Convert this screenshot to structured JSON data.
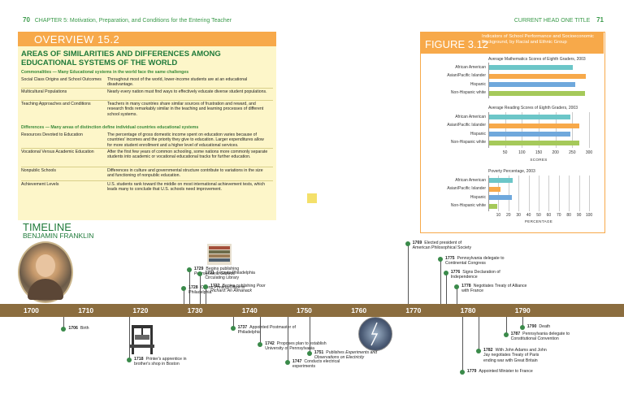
{
  "header": {
    "left_page_num": "70",
    "left_title": "CHAPTER 5: Motivation, Preparation, and Conditions for the Entering Teacher",
    "right_title": "CURRENT HEAD ONE TITLE",
    "right_page_num": "71"
  },
  "overview": {
    "label": "OVERVIEW 15.2",
    "heading": "AREAS OF SIMILARITIES AND DIFFERENCES AMONG EDUCATIONAL SYSTEMS OF THE WORLD",
    "sections": [
      {
        "subhead": "Commonalities — Many Educational systems in the world face the same challenges",
        "rows": [
          {
            "topic": "Social Class Origins and School Outcomes",
            "desc": "Throughout most of the world, lower-income students are at an educational disadvantage."
          },
          {
            "topic": "Multicultural Populations",
            "desc": "Nearly every nation must find ways to effectively educate diverse student populations."
          },
          {
            "topic": "Teaching Approaches and Conditions",
            "desc": "Teachers in many countries share similar sources of frustration and reward, and research finds remarkably similar in the teaching and learning processes of different school systems."
          }
        ]
      },
      {
        "subhead": "Differences — Many areas of distinction define individual countries educational systems",
        "rows": [
          {
            "topic": "Resources Devoted to Education",
            "desc": "The percentage of gross domestic income spent on education varies because of countries' incomes and the priority they give to education. Larger expenditures allow for more student enrollment and a higher level of educational services."
          },
          {
            "topic": "Vocational Versus Academic Education",
            "desc": "After the first few years of common schooling, some nations more commonly separate students into academic or vocational educational tracks for further education."
          },
          {
            "topic": "Nonpublic Schools",
            "desc": "Differences in culture and governmental structure contribute to variations in the size and functioning of nonpublic education."
          },
          {
            "topic": "Achievement Levels",
            "desc": "U.S. students rank toward the middle on most international achievement tests, which leads many to conclude that U.S. schools need improvement."
          }
        ]
      }
    ]
  },
  "figure": {
    "label": "FIGURE 3.12",
    "caption": "Indicators of School Performance and Socioeconomic Background, by Racial and Ethnic Group"
  },
  "chart_data": [
    {
      "type": "bar",
      "title": "Average Mathematics Scores of Eighth Graders, 2003",
      "categories": [
        "African American",
        "Asian/Pacific Islander",
        "Hispanic",
        "Non-Hispanic white"
      ],
      "values": [
        252,
        291,
        259,
        288
      ],
      "colors": [
        "#6cc6c8",
        "#f7a94a",
        "#6fa8dc",
        "#a5c95a"
      ],
      "xlim": [
        0,
        300
      ]
    },
    {
      "type": "bar",
      "title": "Average Reading Scores of Eighth Graders, 2003",
      "categories": [
        "African American",
        "Asian/Pacific Islander",
        "Hispanic",
        "Non-Hispanic white"
      ],
      "values": [
        244,
        270,
        245,
        272
      ],
      "colors": [
        "#6cc6c8",
        "#f7a94a",
        "#6fa8dc",
        "#a5c95a"
      ],
      "xlim": [
        0,
        300
      ],
      "ticks": [
        "50",
        "100",
        "150",
        "200",
        "250",
        "300"
      ],
      "xlabel": "SCORES"
    },
    {
      "type": "bar",
      "title": "Poverty Percentage, 2003",
      "categories": [
        "African American",
        "Asian/Pacific Islander",
        "Hispanic",
        "Non-Hispanic white"
      ],
      "values": [
        24,
        12,
        23,
        9
      ],
      "colors": [
        "#6cc6c8",
        "#f7a94a",
        "#6fa8dc",
        "#a5c95a"
      ],
      "xlim": [
        0,
        100
      ],
      "ticks": [
        "10",
        "20",
        "30",
        "40",
        "50",
        "60",
        "70",
        "80",
        "90",
        "100"
      ],
      "xlabel": "PERCENTAGE"
    }
  ],
  "timeline": {
    "title": "TIMELINE",
    "subtitle": "BENJAMIN FRANKLIN",
    "years": [
      "1700",
      "1710",
      "1720",
      "1730",
      "1740",
      "1750",
      "1760",
      "1770",
      "1780",
      "1790"
    ],
    "above": [
      {
        "year": "1729",
        "text": "Begins publishing",
        "italic": "Pennsylvania Gazette"
      },
      {
        "year": "1728",
        "text": "Opens Printing Office in Philadelphia",
        "italic": ""
      },
      {
        "year": "1731",
        "text": "Founds Philadelphia Circulating Library",
        "italic": ""
      },
      {
        "year": "1732",
        "text": "Begins publishing",
        "italic": "Poor Richard: An Almanack"
      },
      {
        "year": "1769",
        "text": "Elected president of American Philosophical Society",
        "italic": ""
      },
      {
        "year": "1775",
        "text": "Pennsylvania delegate to Continental Congress",
        "italic": ""
      },
      {
        "year": "1776",
        "text": "Signs Declaration of Independence",
        "italic": ""
      },
      {
        "year": "1778",
        "text": "Negotiates Treaty of Alliance with France",
        "italic": ""
      }
    ],
    "below": [
      {
        "year": "1706",
        "text": "Birth",
        "italic": ""
      },
      {
        "year": "1718",
        "text": "Printer's apprentice in brother's shop in Boston",
        "italic": ""
      },
      {
        "year": "1737",
        "text": "Appointed Postmaster of Philadelphia",
        "italic": ""
      },
      {
        "year": "1742",
        "text": "Proposes plan to establish University of Pennsylvania",
        "italic": ""
      },
      {
        "year": "1747",
        "text": "Conducts electrical experiments",
        "italic": ""
      },
      {
        "year": "1751",
        "text": "Publishes",
        "italic": "Experiments and Observations on Electricity"
      },
      {
        "year": "1790",
        "text": "Death",
        "italic": ""
      },
      {
        "year": "1787",
        "text": "Pennsylvania delegate to Constitutional Convention",
        "italic": ""
      },
      {
        "year": "1782",
        "text": "With John Adams and John Jay negotiates Treaty of Paris ending war with Great Britain",
        "italic": ""
      },
      {
        "year": "1779",
        "text": "Appointed Minister to France",
        "italic": ""
      }
    ]
  }
}
